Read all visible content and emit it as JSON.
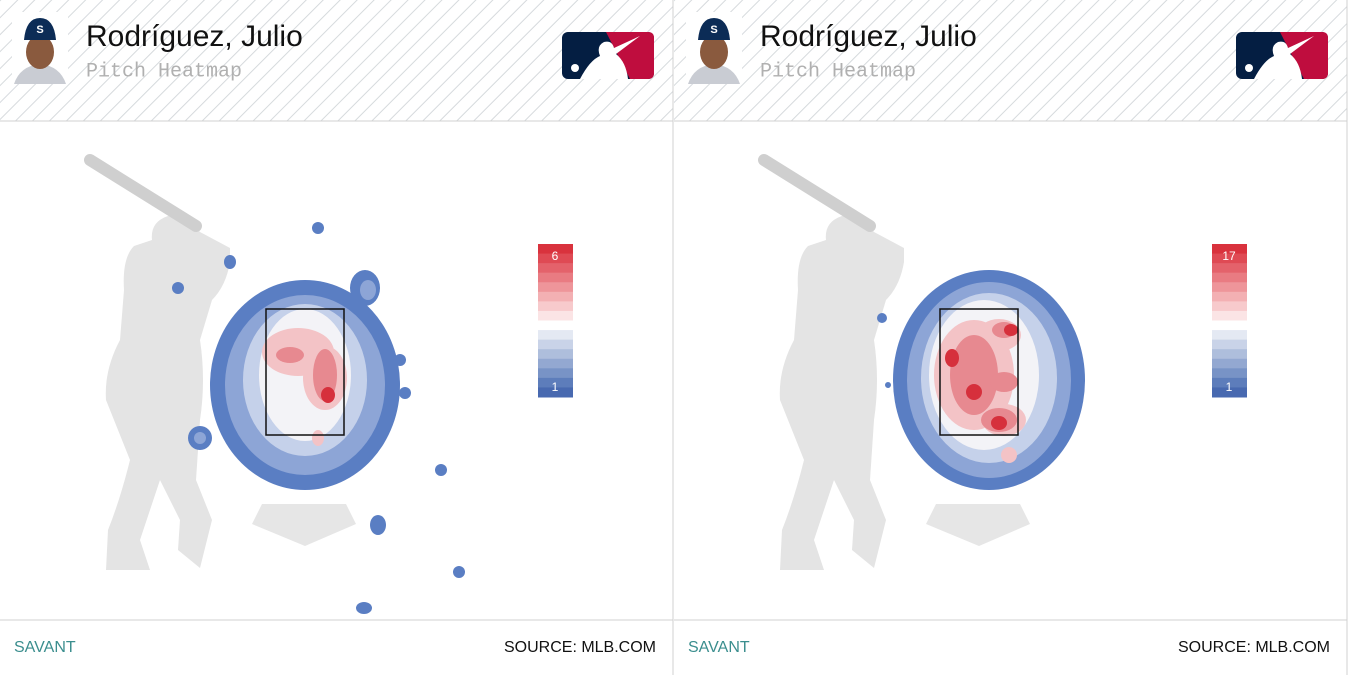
{
  "panels": [
    {
      "name": "Rodríguez, Julio",
      "subtitle": "Pitch Heatmap",
      "scale": {
        "max": 6,
        "min": 1
      },
      "footer": {
        "left": "SAVANT",
        "right": "SOURCE: MLB.COM"
      }
    },
    {
      "name": "Rodríguez, Julio",
      "subtitle": "Pitch Heatmap",
      "scale": {
        "max": 17,
        "min": 1
      },
      "footer": {
        "left": "SAVANT",
        "right": "SOURCE: MLB.COM"
      }
    }
  ]
}
